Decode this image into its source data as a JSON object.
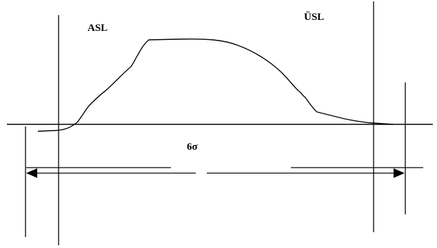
{
  "labels": {
    "lower_spec_limit": "ASL",
    "upper_spec_limit": "ÜSL",
    "spread": "6σ"
  },
  "colors": {
    "line": "#000000",
    "background": "#ffffff"
  }
}
